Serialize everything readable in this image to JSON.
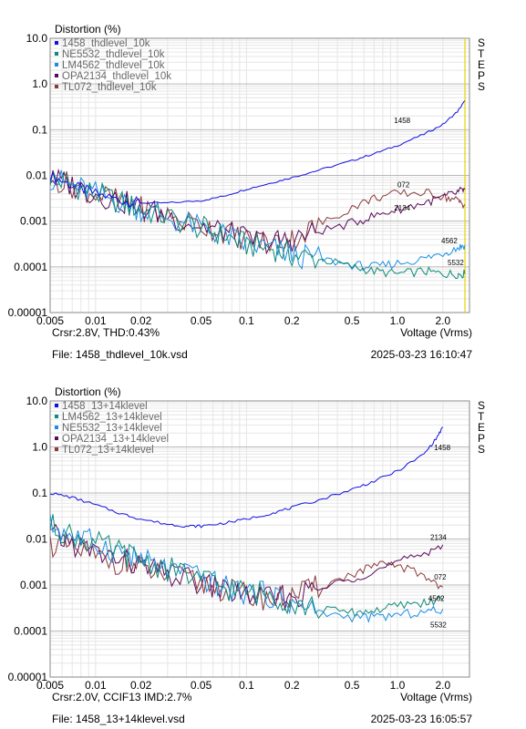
{
  "charts": [
    {
      "ylabel": "Distortion (%)",
      "xlabel": "Voltage (Vrms)",
      "steps_label": [
        "S",
        "T",
        "E",
        "P",
        "S"
      ],
      "cursor_text": "Crsr:2.8V, THD:0.43%",
      "file_text": "File: 1458_thdlevel_10k.vsd",
      "date_text": "2025-03-23   16:10:47",
      "cursor_x": 2.8,
      "yticks": [
        "10.0",
        "1.0",
        "0.1",
        "0.01",
        "0.001",
        "0.0001",
        "0.00001"
      ],
      "xticks": [
        "0.005",
        "0.01",
        "0.02",
        "0.05",
        "0.1",
        "0.2",
        "0.5",
        "1.0",
        "2.0"
      ],
      "legend": [
        {
          "name": "1458_thdlevel_10k",
          "color": "#1010e0"
        },
        {
          "name": "NE5532_thdlevel_10k",
          "color": "#0d8a7a"
        },
        {
          "name": "LM4562_thdlevel_10k",
          "color": "#1a8ee6"
        },
        {
          "name": "OPA2134_thdlevel_10k",
          "color": "#5a0a5a"
        },
        {
          "name": "TL072_thdlevel_10k",
          "color": "#8b3a3a"
        }
      ],
      "tags": [
        "1458",
        "072",
        "2134",
        "4562",
        "5532"
      ]
    },
    {
      "ylabel": "Distortion (%)",
      "xlabel": "Voltage (Vrms)",
      "steps_label": [
        "S",
        "T",
        "E",
        "P",
        "S"
      ],
      "cursor_text": "Crsr:2.0V, CCIF13 IMD:2.7%",
      "file_text": "File: 1458_13+14klevel.vsd",
      "date_text": "2025-03-23   16:05:57",
      "yticks": [
        "10.0",
        "1.0",
        "0.1",
        "0.01",
        "0.001",
        "0.0001",
        "0.00001"
      ],
      "xticks": [
        "0.005",
        "0.01",
        "0.02",
        "0.05",
        "0.1",
        "0.2",
        "0.5",
        "1.0",
        "2.0"
      ],
      "legend": [
        {
          "name": "1458_13+14klevel",
          "color": "#1010e0"
        },
        {
          "name": "LM4562_13+14klevel",
          "color": "#0d8a7a"
        },
        {
          "name": "NE5532_13+14klevel",
          "color": "#1a8ee6"
        },
        {
          "name": "OPA2134_13+14klevel",
          "color": "#5a0a5a"
        },
        {
          "name": "TL072_13+14klevel",
          "color": "#8b3a3a"
        }
      ],
      "tags": [
        "1458",
        "2134",
        "072",
        "4562",
        "5532"
      ]
    }
  ],
  "chart_data": [
    {
      "type": "line",
      "xscale": "log",
      "yscale": "log",
      "xlim": [
        0.005,
        3.0
      ],
      "ylim": [
        1e-05,
        10.0
      ],
      "grid": true,
      "legend_position": "top-left",
      "series": [
        {
          "name": "1458_thdlevel_10k",
          "x": [
            0.005,
            0.007,
            0.01,
            0.015,
            0.02,
            0.03,
            0.05,
            0.07,
            0.1,
            0.15,
            0.2,
            0.3,
            0.5,
            0.7,
            1.0,
            1.5,
            2.0,
            2.5,
            2.8
          ],
          "y": [
            0.01,
            0.006,
            0.004,
            0.0028,
            0.0025,
            0.0025,
            0.0028,
            0.0035,
            0.005,
            0.007,
            0.009,
            0.013,
            0.021,
            0.03,
            0.045,
            0.08,
            0.13,
            0.25,
            0.43
          ]
        },
        {
          "name": "NE5532_thdlevel_10k",
          "x": [
            0.005,
            0.007,
            0.01,
            0.015,
            0.02,
            0.03,
            0.05,
            0.07,
            0.1,
            0.15,
            0.2,
            0.3,
            0.5,
            0.7,
            1.0,
            1.5,
            2.0,
            2.5,
            2.8
          ],
          "y": [
            0.009,
            0.006,
            0.004,
            0.0025,
            0.0018,
            0.0012,
            0.0007,
            0.0005,
            0.0003,
            0.00025,
            0.00018,
            0.00015,
            0.0001,
            8e-05,
            7e-05,
            8e-05,
            7e-05,
            7e-05,
            7e-05
          ]
        },
        {
          "name": "LM4562_thdlevel_10k",
          "x": [
            0.005,
            0.007,
            0.01,
            0.015,
            0.02,
            0.03,
            0.05,
            0.07,
            0.1,
            0.15,
            0.2,
            0.3,
            0.5,
            0.7,
            1.0,
            1.5,
            2.0,
            2.5,
            2.8
          ],
          "y": [
            0.009,
            0.006,
            0.004,
            0.0025,
            0.0018,
            0.0012,
            0.0007,
            0.0005,
            0.0003,
            0.00025,
            0.00018,
            0.00015,
            0.00011,
            0.0001,
            0.00012,
            0.00015,
            0.0002,
            0.00026,
            0.0003
          ]
        },
        {
          "name": "OPA2134_thdlevel_10k",
          "x": [
            0.005,
            0.007,
            0.01,
            0.015,
            0.02,
            0.03,
            0.05,
            0.07,
            0.1,
            0.15,
            0.2,
            0.3,
            0.5,
            0.7,
            1.0,
            1.5,
            2.0,
            2.5,
            2.8
          ],
          "y": [
            0.009,
            0.006,
            0.004,
            0.0026,
            0.0019,
            0.0013,
            0.0008,
            0.0006,
            0.0004,
            0.00035,
            0.0004,
            0.0006,
            0.0009,
            0.0013,
            0.0018,
            0.0025,
            0.0033,
            0.0042,
            0.005
          ]
        },
        {
          "name": "TL072_thdlevel_10k",
          "x": [
            0.005,
            0.007,
            0.01,
            0.015,
            0.02,
            0.03,
            0.05,
            0.07,
            0.1,
            0.15,
            0.2,
            0.3,
            0.5,
            0.7,
            1.0,
            1.5,
            2.0,
            2.5,
            2.8
          ],
          "y": [
            0.009,
            0.006,
            0.004,
            0.0026,
            0.0019,
            0.0013,
            0.0008,
            0.0006,
            0.0004,
            0.00035,
            0.0004,
            0.0008,
            0.002,
            0.0032,
            0.004,
            0.0042,
            0.0035,
            0.0028,
            0.0023
          ]
        }
      ]
    },
    {
      "type": "line",
      "xscale": "log",
      "yscale": "log",
      "xlim": [
        0.005,
        3.0
      ],
      "ylim": [
        1e-05,
        10.0
      ],
      "grid": true,
      "legend_position": "top-left",
      "series": [
        {
          "name": "1458_13+14klevel",
          "x": [
            0.005,
            0.007,
            0.01,
            0.015,
            0.02,
            0.03,
            0.04,
            0.05,
            0.07,
            0.1,
            0.15,
            0.2,
            0.3,
            0.5,
            0.7,
            1.0,
            1.5,
            1.8,
            2.0
          ],
          "y": [
            0.1,
            0.08,
            0.055,
            0.035,
            0.027,
            0.021,
            0.019,
            0.019,
            0.022,
            0.027,
            0.037,
            0.048,
            0.07,
            0.12,
            0.18,
            0.3,
            0.7,
            1.5,
            2.7
          ]
        },
        {
          "name": "LM4562_13+14klevel",
          "x": [
            0.005,
            0.007,
            0.01,
            0.015,
            0.02,
            0.03,
            0.05,
            0.07,
            0.1,
            0.15,
            0.2,
            0.3,
            0.5,
            0.7,
            1.0,
            1.5,
            2.0
          ],
          "y": [
            0.02,
            0.012,
            0.008,
            0.005,
            0.0035,
            0.0022,
            0.0014,
            0.0009,
            0.0007,
            0.0006,
            0.0004,
            0.0003,
            0.00025,
            0.00028,
            0.00035,
            0.00042,
            0.00048
          ]
        },
        {
          "name": "NE5532_13+14klevel",
          "x": [
            0.005,
            0.007,
            0.01,
            0.015,
            0.02,
            0.03,
            0.05,
            0.07,
            0.1,
            0.15,
            0.2,
            0.3,
            0.5,
            0.7,
            1.0,
            1.5,
            2.0
          ],
          "y": [
            0.02,
            0.012,
            0.008,
            0.005,
            0.0035,
            0.0022,
            0.0014,
            0.0009,
            0.0007,
            0.0006,
            0.0004,
            0.00025,
            0.0002,
            0.0002,
            0.00022,
            0.00026,
            0.0003
          ]
        },
        {
          "name": "OPA2134_13+14klevel",
          "x": [
            0.005,
            0.007,
            0.01,
            0.015,
            0.02,
            0.03,
            0.05,
            0.07,
            0.1,
            0.15,
            0.2,
            0.3,
            0.5,
            0.7,
            1.0,
            1.5,
            2.0
          ],
          "y": [
            0.012,
            0.008,
            0.005,
            0.0035,
            0.0025,
            0.0017,
            0.0011,
            0.0008,
            0.0006,
            0.0005,
            0.00055,
            0.0008,
            0.0014,
            0.002,
            0.003,
            0.005,
            0.0075
          ]
        },
        {
          "name": "TL072_13+14klevel",
          "x": [
            0.005,
            0.007,
            0.01,
            0.015,
            0.02,
            0.03,
            0.05,
            0.07,
            0.1,
            0.15,
            0.2,
            0.3,
            0.5,
            0.7,
            1.0,
            1.5,
            2.0
          ],
          "y": [
            0.008,
            0.006,
            0.004,
            0.003,
            0.0022,
            0.0016,
            0.0011,
            0.0008,
            0.0006,
            0.0005,
            0.00055,
            0.0009,
            0.0017,
            0.0026,
            0.0027,
            0.0016,
            0.0009
          ]
        }
      ]
    }
  ]
}
